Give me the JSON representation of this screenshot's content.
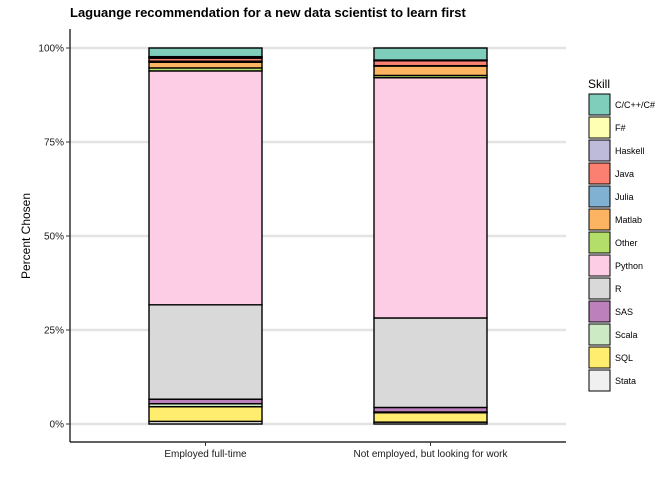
{
  "chart_data": {
    "type": "bar",
    "stacked": true,
    "title": "Laguange recommendation for a new data scientist to learn first",
    "xlabel": "",
    "ylabel": "Percent Chosen",
    "ylim": [
      0,
      100
    ],
    "y_ticks": [
      0,
      25,
      50,
      75,
      100
    ],
    "y_tick_labels": [
      "0%",
      "25%",
      "50%",
      "75%",
      "100%"
    ],
    "grid": "horizontal",
    "legend_title": "Skill",
    "legend_position": "right",
    "categories": [
      "Employed full-time",
      "Not employed, but looking for work"
    ],
    "series": [
      {
        "name": "C/C++/C#",
        "color": "#7fcdbb",
        "values": [
          2.3,
          3.2
        ]
      },
      {
        "name": "F#",
        "color": "#ffffb3",
        "values": [
          0.2,
          0.0
        ]
      },
      {
        "name": "Haskell",
        "color": "#bebada",
        "values": [
          0.2,
          0.2
        ]
      },
      {
        "name": "Java",
        "color": "#fb8072",
        "values": [
          0.8,
          1.3
        ]
      },
      {
        "name": "Julia",
        "color": "#80b1d3",
        "values": [
          0.3,
          0.1
        ]
      },
      {
        "name": "Matlab",
        "color": "#fdb462",
        "values": [
          1.5,
          2.5
        ]
      },
      {
        "name": "Other",
        "color": "#b3de69",
        "values": [
          0.8,
          0.6
        ]
      },
      {
        "name": "Python",
        "color": "#fccde5",
        "values": [
          62.2,
          63.9
        ]
      },
      {
        "name": "R",
        "color": "#d9d9d9",
        "values": [
          25.1,
          23.8
        ]
      },
      {
        "name": "SAS",
        "color": "#bc80bd",
        "values": [
          1.2,
          1.2
        ]
      },
      {
        "name": "Scala",
        "color": "#ccebc5",
        "values": [
          0.8,
          0.2
        ]
      },
      {
        "name": "SQL",
        "color": "#ffed6f",
        "values": [
          3.9,
          2.5
        ]
      },
      {
        "name": "Stata",
        "color": "#f0f0f0",
        "values": [
          0.7,
          0.5
        ]
      }
    ]
  }
}
